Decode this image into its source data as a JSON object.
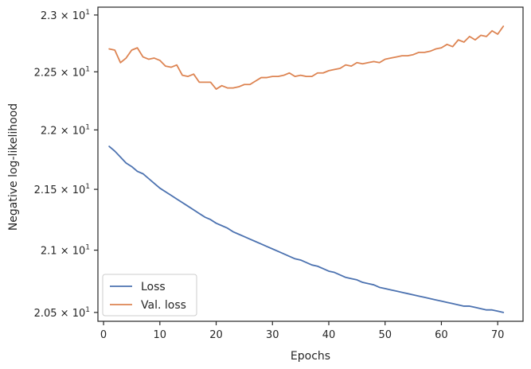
{
  "chart_data": {
    "type": "line",
    "title": "",
    "xlabel": "Epochs",
    "ylabel": "Negative log-likelihood",
    "yscale": "log",
    "xlim": [
      -1,
      74.5
    ],
    "ylim": [
      20.43,
      23.07
    ],
    "grid": false,
    "legend_position": "lower-left",
    "x_ticks": [
      {
        "value": 0,
        "label": "0"
      },
      {
        "value": 10,
        "label": "10"
      },
      {
        "value": 20,
        "label": "20"
      },
      {
        "value": 30,
        "label": "30"
      },
      {
        "value": 40,
        "label": "40"
      },
      {
        "value": 50,
        "label": "50"
      },
      {
        "value": 60,
        "label": "60"
      },
      {
        "value": 70,
        "label": "70"
      }
    ],
    "y_ticks": [
      {
        "value": 20.5,
        "label": "2.05 × 10",
        "exp": "1"
      },
      {
        "value": 21.0,
        "label": "2.1 × 10",
        "exp": "1"
      },
      {
        "value": 21.5,
        "label": "2.15 × 10",
        "exp": "1"
      },
      {
        "value": 22.0,
        "label": "2.2 × 10",
        "exp": "1"
      },
      {
        "value": 22.5,
        "label": "2.25 × 10",
        "exp": "1"
      },
      {
        "value": 23.0,
        "label": "2.3 × 10",
        "exp": "1"
      }
    ],
    "x": [
      1,
      2,
      3,
      4,
      5,
      6,
      7,
      8,
      9,
      10,
      11,
      12,
      13,
      14,
      15,
      16,
      17,
      18,
      19,
      20,
      21,
      22,
      23,
      24,
      25,
      26,
      27,
      28,
      29,
      30,
      31,
      32,
      33,
      34,
      35,
      36,
      37,
      38,
      39,
      40,
      41,
      42,
      43,
      44,
      45,
      46,
      47,
      48,
      49,
      50,
      51,
      52,
      53,
      54,
      55,
      56,
      57,
      58,
      59,
      60,
      61,
      62,
      63,
      64,
      65,
      66,
      67,
      68,
      69,
      70,
      71
    ],
    "series": [
      {
        "name": "Loss",
        "color": "#4c72b0",
        "values": [
          21.86,
          21.82,
          21.77,
          21.72,
          21.69,
          21.65,
          21.63,
          21.59,
          21.55,
          21.51,
          21.48,
          21.45,
          21.42,
          21.39,
          21.36,
          21.33,
          21.3,
          21.27,
          21.25,
          21.22,
          21.2,
          21.18,
          21.15,
          21.13,
          21.11,
          21.09,
          21.07,
          21.05,
          21.03,
          21.01,
          20.99,
          20.97,
          20.95,
          20.93,
          20.92,
          20.9,
          20.88,
          20.87,
          20.85,
          20.83,
          20.82,
          20.8,
          20.78,
          20.77,
          20.76,
          20.74,
          20.73,
          20.72,
          20.7,
          20.69,
          20.68,
          20.67,
          20.66,
          20.65,
          20.64,
          20.63,
          20.62,
          20.61,
          20.6,
          20.59,
          20.58,
          20.57,
          20.56,
          20.55,
          20.55,
          20.54,
          20.53,
          20.52,
          20.52,
          20.51,
          20.5
        ]
      },
      {
        "name": "Val. loss",
        "color": "#dd8452",
        "values": [
          22.7,
          22.69,
          22.58,
          22.62,
          22.69,
          22.71,
          22.63,
          22.61,
          22.62,
          22.6,
          22.55,
          22.54,
          22.56,
          22.47,
          22.46,
          22.48,
          22.41,
          22.41,
          22.41,
          22.35,
          22.38,
          22.36,
          22.36,
          22.37,
          22.39,
          22.39,
          22.42,
          22.45,
          22.45,
          22.46,
          22.46,
          22.47,
          22.49,
          22.46,
          22.47,
          22.46,
          22.46,
          22.49,
          22.49,
          22.51,
          22.52,
          22.53,
          22.56,
          22.55,
          22.58,
          22.57,
          22.58,
          22.59,
          22.58,
          22.61,
          22.62,
          22.63,
          22.64,
          22.64,
          22.65,
          22.67,
          22.67,
          22.68,
          22.7,
          22.71,
          22.74,
          22.72,
          22.78,
          22.76,
          22.81,
          22.78,
          22.82,
          22.81,
          22.86,
          22.83,
          22.9
        ]
      }
    ]
  }
}
